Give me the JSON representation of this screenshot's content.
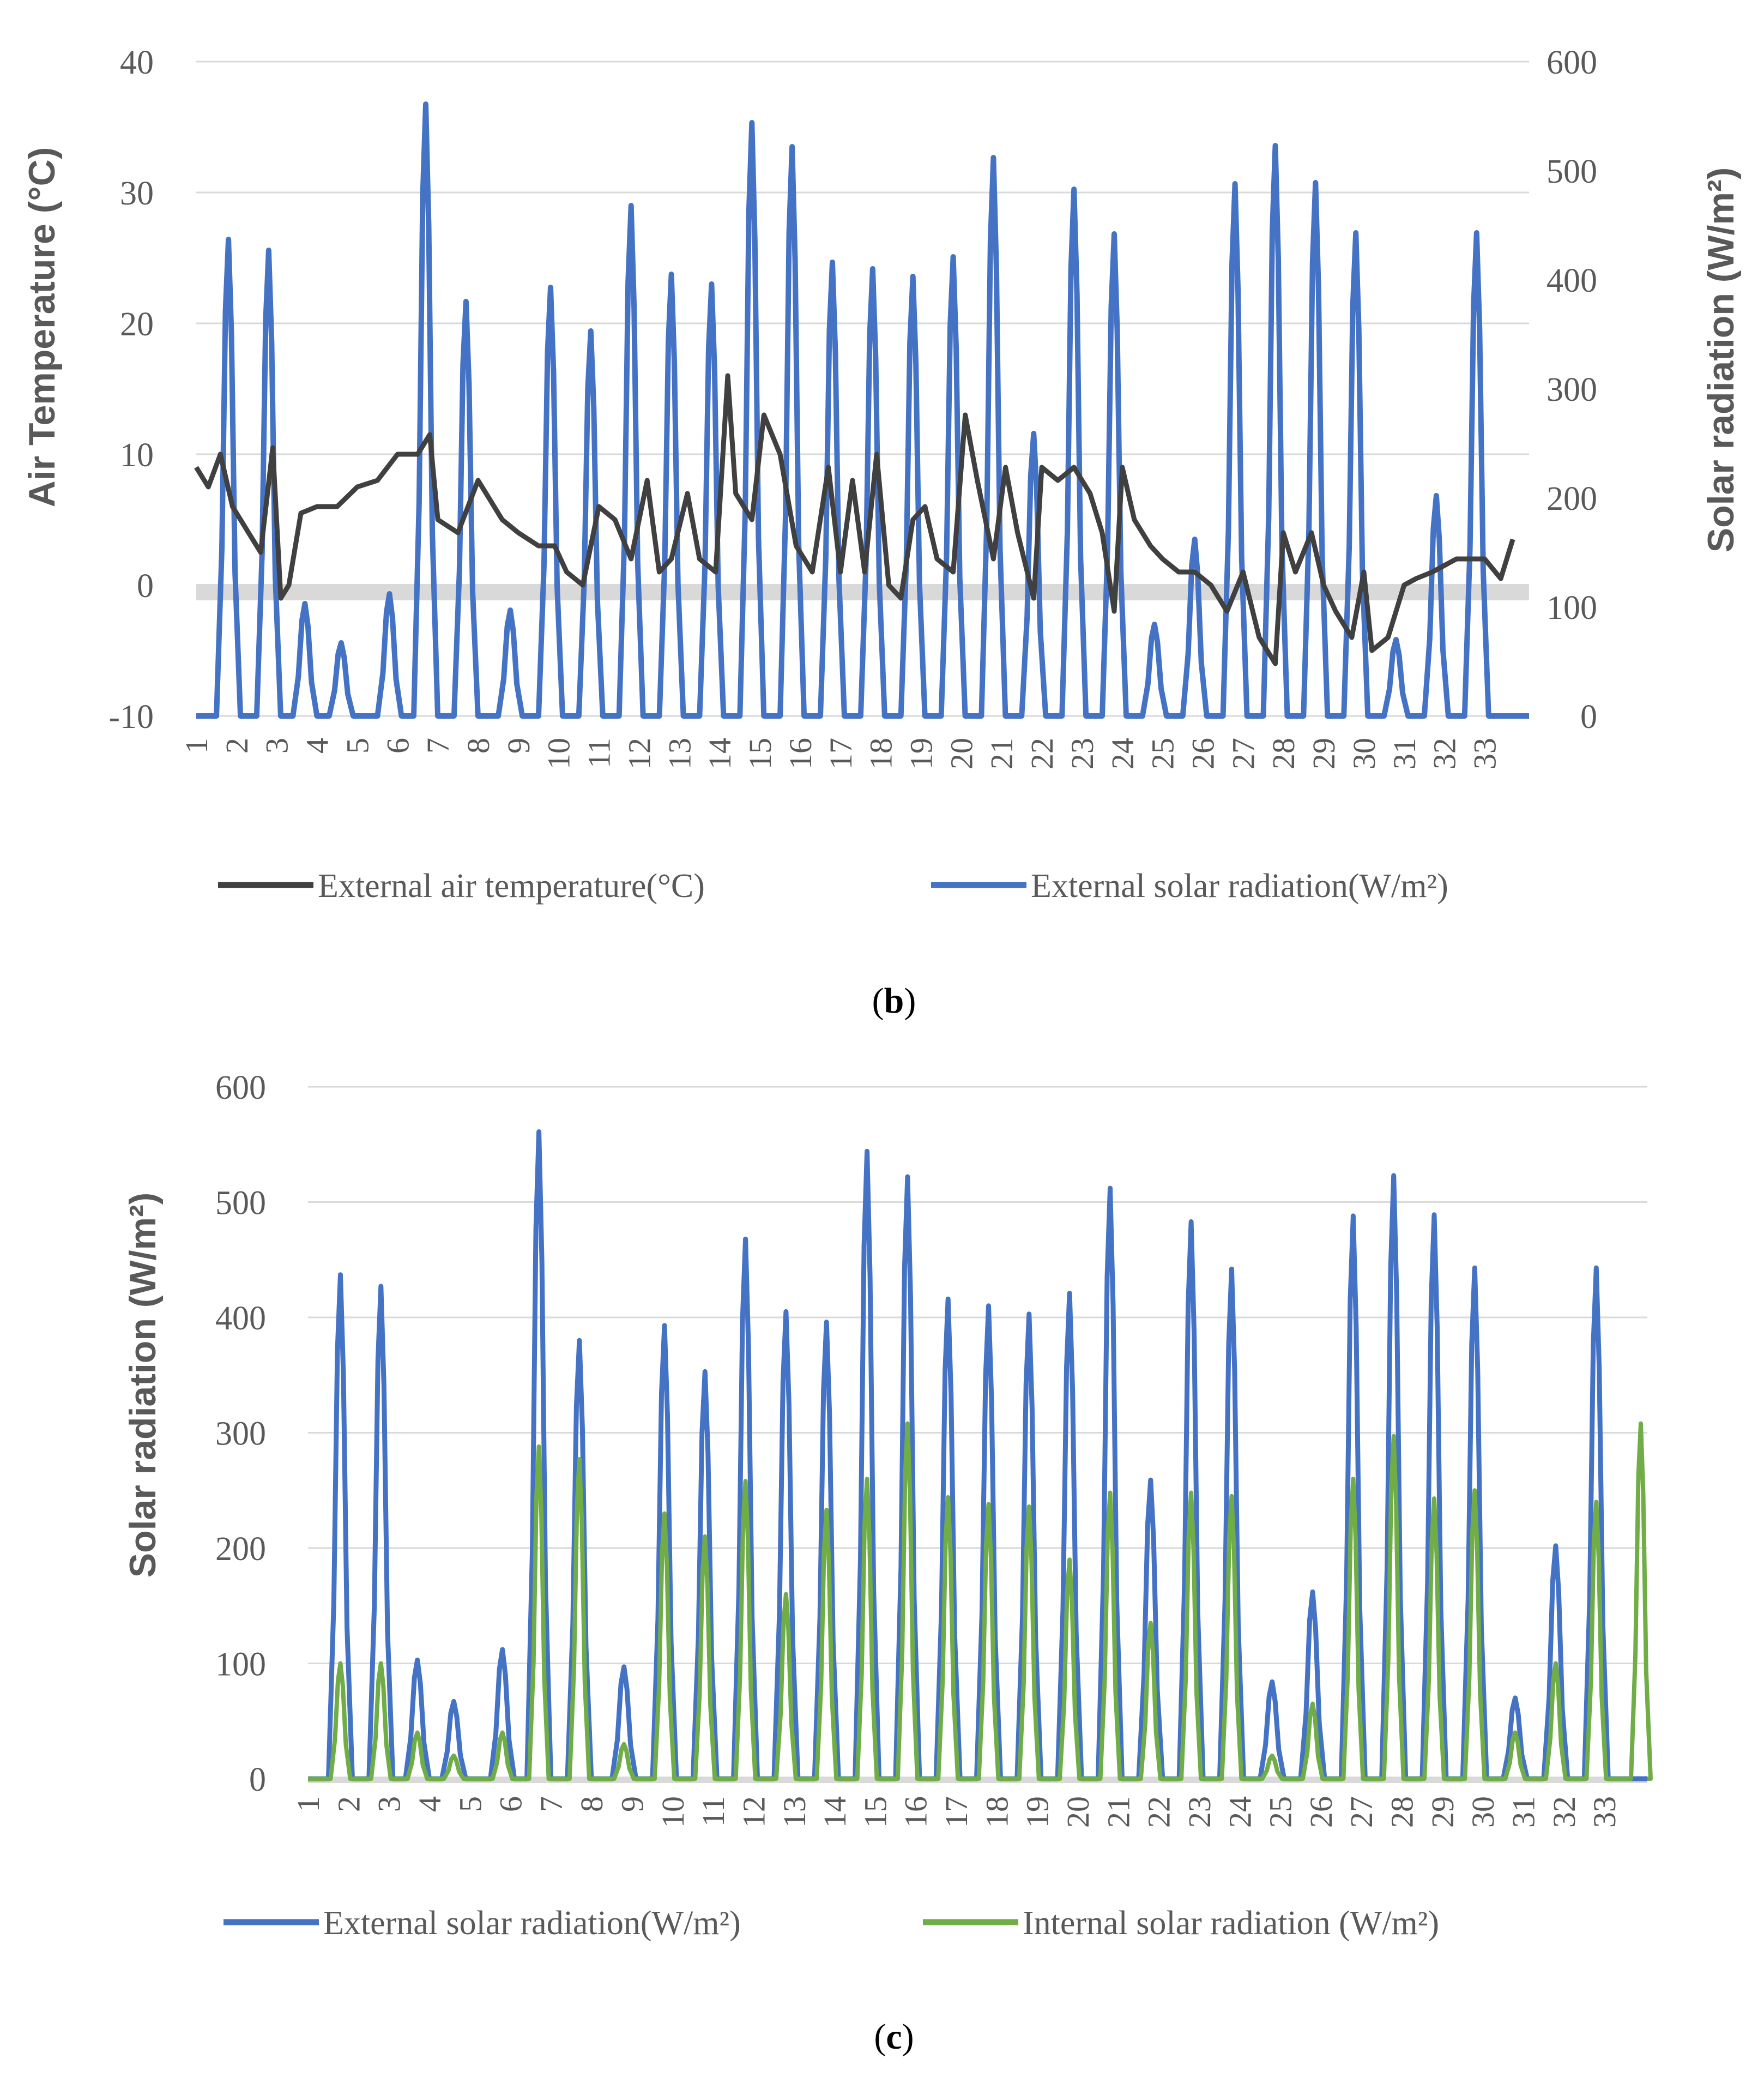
{
  "chart_data": [
    {
      "id": "b",
      "type": "line",
      "caption_label": "b",
      "x_ticks": [
        "1",
        "2",
        "3",
        "4",
        "5",
        "6",
        "7",
        "8",
        "9",
        "10",
        "11",
        "12",
        "13",
        "14",
        "15",
        "16",
        "17",
        "18",
        "19",
        "20",
        "21",
        "22",
        "23",
        "24",
        "25",
        "26",
        "27",
        "28",
        "29",
        "30",
        "31",
        "32",
        "33"
      ],
      "ylabel_left": "Air Temperature (°C)",
      "ylabel_right": "Solar radiation (W/m²)",
      "ylim_left": [
        -10,
        40
      ],
      "ylim_right": [
        0,
        600
      ],
      "yticks_left": [
        "40",
        "30",
        "20",
        "10",
        "0",
        "-10"
      ],
      "yticks_right": [
        "600",
        "500",
        "400",
        "300",
        "200",
        "100",
        "0"
      ],
      "grid": true,
      "legend_position": "bottom",
      "colors": {
        "temperature": "#404040",
        "external": "#4472C4",
        "grid": "#d9d9d9",
        "zero_band": "#d9d9d9"
      },
      "series": [
        {
          "name": "External air temperature(°C)",
          "axis": "left",
          "x": [
            1,
            1.3,
            1.6,
            1.9,
            2.3,
            2.6,
            2.9,
            3.1,
            3.3,
            3.6,
            4,
            4.5,
            5,
            5.5,
            6,
            6.5,
            6.8,
            7.0,
            7.5,
            8.0,
            8.2,
            8.6,
            9,
            9.5,
            9.9,
            10.2,
            10.6,
            11,
            11.4,
            11.8,
            12.2,
            12.5,
            12.8,
            13.2,
            13.5,
            13.9,
            14.2,
            14.4,
            14.8,
            15.1,
            15.5,
            15.9,
            16.3,
            16.7,
            17.0,
            17.3,
            17.6,
            17.9,
            18.2,
            18.5,
            18.8,
            19.1,
            19.4,
            19.8,
            20.1,
            20.4,
            20.8,
            21.1,
            21.4,
            21.8,
            22.0,
            22.4,
            22.8,
            23.2,
            23.5,
            23.8,
            24.0,
            24.3,
            24.7,
            25.0,
            25.4,
            25.8,
            26.2,
            26.6,
            27.0,
            27.4,
            27.8,
            28.0,
            28.3,
            28.7,
            29.0,
            29.3,
            29.7,
            30.0,
            30.2,
            30.6,
            31.0,
            31.3,
            31.7,
            32.0,
            32.3,
            32.7,
            33.0,
            33.4,
            33.7
          ],
          "y": [
            9,
            7.5,
            10,
            6,
            4,
            2.5,
            10.5,
            -1,
            0,
            5.5,
            6,
            6,
            7.5,
            8,
            10,
            10,
            11.5,
            5,
            4,
            8,
            7,
            5,
            4,
            3,
            3,
            1,
            0,
            6,
            5,
            2,
            8,
            1,
            2,
            7,
            2,
            1,
            16,
            7,
            5,
            13,
            10,
            3,
            1,
            9,
            1,
            8,
            1,
            10,
            0,
            -1,
            5,
            6,
            2,
            1,
            13,
            8,
            2,
            9,
            4,
            -1,
            9,
            8,
            9,
            7,
            4,
            -2,
            9,
            5,
            3,
            2,
            1,
            1,
            0,
            -2,
            1,
            -4,
            -6,
            4,
            1,
            4,
            0,
            -2,
            -4,
            1,
            -5,
            -4,
            0,
            0.5,
            1,
            1.5,
            2,
            2,
            2,
            0.5,
            3.5
          ]
        },
        {
          "name": "External solar radiation(W/m²)",
          "axis": "right",
          "peaks": [
            [
              1.8,
              437
            ],
            [
              2.8,
              427
            ],
            [
              3.7,
              103
            ],
            [
              4.6,
              67
            ],
            [
              5.8,
              112
            ],
            [
              6.7,
              561
            ],
            [
              7.7,
              380
            ],
            [
              8.8,
              97
            ],
            [
              9.8,
              393
            ],
            [
              10.8,
              353
            ],
            [
              11.8,
              468
            ],
            [
              12.8,
              405
            ],
            [
              13.8,
              396
            ],
            [
              14.8,
              544
            ],
            [
              15.8,
              522
            ],
            [
              16.8,
              416
            ],
            [
              17.8,
              410
            ],
            [
              18.8,
              403
            ],
            [
              19.8,
              421
            ],
            [
              20.8,
              512
            ],
            [
              21.8,
              259
            ],
            [
              22.8,
              483
            ],
            [
              23.8,
              442
            ],
            [
              24.8,
              84
            ],
            [
              25.8,
              162
            ],
            [
              26.8,
              488
            ],
            [
              27.8,
              523
            ],
            [
              28.8,
              489
            ],
            [
              29.8,
              443
            ],
            [
              30.8,
              70
            ],
            [
              31.8,
              202
            ],
            [
              32.8,
              443
            ]
          ]
        }
      ]
    },
    {
      "id": "c",
      "type": "line",
      "caption_label": "c",
      "x_ticks": [
        "1",
        "2",
        "3",
        "4",
        "5",
        "6",
        "7",
        "8",
        "9",
        "10",
        "11",
        "12",
        "13",
        "14",
        "15",
        "16",
        "17",
        "18",
        "19",
        "20",
        "21",
        "22",
        "23",
        "24",
        "25",
        "26",
        "27",
        "28",
        "29",
        "30",
        "31",
        "32",
        "33"
      ],
      "ylabel": "Solar radiation (W/m²)",
      "ylim": [
        0,
        600
      ],
      "yticks": [
        "600",
        "500",
        "400",
        "300",
        "200",
        "100",
        "0"
      ],
      "grid": true,
      "legend_position": "bottom",
      "colors": {
        "external": "#4472C4",
        "internal": "#70AD47",
        "grid": "#d9d9d9",
        "zero_band": "#d9d9d9"
      },
      "series": [
        {
          "name": "External solar radiation(W/m²)",
          "peaks": [
            [
              1.8,
              437
            ],
            [
              2.8,
              427
            ],
            [
              3.7,
              103
            ],
            [
              4.6,
              67
            ],
            [
              5.8,
              112
            ],
            [
              6.7,
              561
            ],
            [
              7.7,
              380
            ],
            [
              8.8,
              97
            ],
            [
              9.8,
              393
            ],
            [
              10.8,
              353
            ],
            [
              11.8,
              468
            ],
            [
              12.8,
              405
            ],
            [
              13.8,
              396
            ],
            [
              14.8,
              544
            ],
            [
              15.8,
              522
            ],
            [
              16.8,
              416
            ],
            [
              17.8,
              410
            ],
            [
              18.8,
              403
            ],
            [
              19.8,
              421
            ],
            [
              20.8,
              512
            ],
            [
              21.8,
              259
            ],
            [
              22.8,
              483
            ],
            [
              23.8,
              442
            ],
            [
              24.8,
              84
            ],
            [
              25.8,
              162
            ],
            [
              26.8,
              488
            ],
            [
              27.8,
              523
            ],
            [
              28.8,
              489
            ],
            [
              29.8,
              443
            ],
            [
              30.8,
              70
            ],
            [
              31.8,
              202
            ],
            [
              32.8,
              443
            ]
          ]
        },
        {
          "name": "Internal solar radiation (W/m²)",
          "peaks": [
            [
              1.8,
              100
            ],
            [
              2.8,
              100
            ],
            [
              3.7,
              40
            ],
            [
              4.6,
              20
            ],
            [
              5.8,
              40
            ],
            [
              6.7,
              288
            ],
            [
              7.7,
              277
            ],
            [
              8.8,
              30
            ],
            [
              9.8,
              230
            ],
            [
              10.8,
              210
            ],
            [
              11.8,
              258
            ],
            [
              12.8,
              160
            ],
            [
              13.8,
              233
            ],
            [
              14.8,
              260
            ],
            [
              15.8,
              308
            ],
            [
              16.8,
              244
            ],
            [
              17.8,
              238
            ],
            [
              18.8,
              236
            ],
            [
              19.8,
              190
            ],
            [
              20.8,
              248
            ],
            [
              21.8,
              135
            ],
            [
              22.8,
              248
            ],
            [
              23.8,
              245
            ],
            [
              24.8,
              20
            ],
            [
              25.8,
              65
            ],
            [
              26.8,
              260
            ],
            [
              27.8,
              297
            ],
            [
              28.8,
              243
            ],
            [
              29.8,
              250
            ],
            [
              30.8,
              40
            ],
            [
              31.8,
              100
            ],
            [
              32.8,
              240
            ],
            [
              33.9,
              308
            ]
          ]
        }
      ]
    }
  ]
}
